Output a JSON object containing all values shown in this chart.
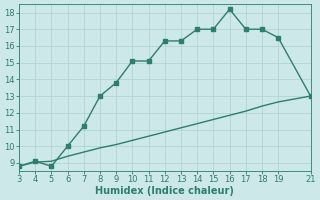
{
  "title": "",
  "xlabel": "Humidex (Indice chaleur)",
  "xlim": [
    3,
    21
  ],
  "ylim": [
    8.5,
    18.5
  ],
  "xticks": [
    3,
    4,
    5,
    6,
    7,
    8,
    9,
    10,
    11,
    12,
    13,
    14,
    15,
    16,
    17,
    18,
    19,
    21
  ],
  "yticks": [
    9,
    10,
    11,
    12,
    13,
    14,
    15,
    16,
    17,
    18
  ],
  "line1_x": [
    3,
    4,
    5,
    6,
    7,
    8,
    9,
    10,
    11,
    12,
    13,
    14,
    15,
    16,
    17,
    18,
    19,
    21
  ],
  "line1_y": [
    8.8,
    9.1,
    8.8,
    10.0,
    11.2,
    13.0,
    13.8,
    15.1,
    15.1,
    16.3,
    16.3,
    17.0,
    17.0,
    18.2,
    17.0,
    17.0,
    16.5,
    13.0
  ],
  "line2_x": [
    3,
    4,
    5,
    6,
    7,
    8,
    9,
    10,
    11,
    12,
    13,
    14,
    15,
    16,
    17,
    18,
    19,
    21
  ],
  "line2_y": [
    8.8,
    9.05,
    9.1,
    9.4,
    9.65,
    9.9,
    10.1,
    10.35,
    10.6,
    10.85,
    11.1,
    11.35,
    11.6,
    11.85,
    12.1,
    12.4,
    12.65,
    13.0
  ],
  "line_color": "#2e7d6e",
  "bg_color": "#cce8e8",
  "grid_color": "#aed0d0",
  "markersize": 2.5,
  "linewidth": 1.0,
  "tick_fontsize": 6,
  "xlabel_fontsize": 7
}
